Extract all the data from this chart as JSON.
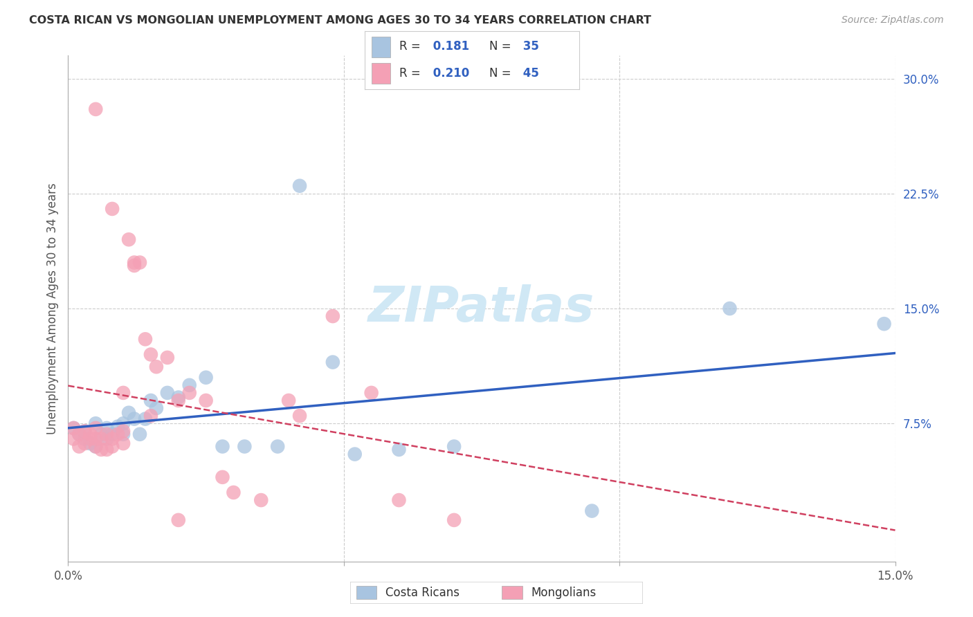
{
  "title": "COSTA RICAN VS MONGOLIAN UNEMPLOYMENT AMONG AGES 30 TO 34 YEARS CORRELATION CHART",
  "source": "Source: ZipAtlas.com",
  "ylabel": "Unemployment Among Ages 30 to 34 years",
  "xlim": [
    0.0,
    0.15
  ],
  "ylim": [
    -0.015,
    0.315
  ],
  "yticks_right": [
    0.075,
    0.15,
    0.225,
    0.3
  ],
  "yticklabels_right": [
    "7.5%",
    "15.0%",
    "22.5%",
    "30.0%"
  ],
  "xtick_positions": [
    0.0,
    0.05,
    0.1,
    0.15
  ],
  "xticklabels": [
    "0.0%",
    "",
    "",
    "15.0%"
  ],
  "costa_rica_color": "#a8c4e0",
  "mongolia_color": "#f4a0b5",
  "trend_cr_color": "#3060c0",
  "trend_mn_color": "#d04060",
  "background_color": "#ffffff",
  "grid_color": "#cccccc",
  "watermark_color": "#d0e8f5",
  "costa_rica_x": [
    0.001,
    0.002,
    0.003,
    0.003,
    0.004,
    0.005,
    0.005,
    0.006,
    0.007,
    0.007,
    0.008,
    0.009,
    0.01,
    0.01,
    0.011,
    0.012,
    0.013,
    0.014,
    0.015,
    0.016,
    0.018,
    0.02,
    0.022,
    0.025,
    0.028,
    0.032,
    0.038,
    0.042,
    0.048,
    0.052,
    0.06,
    0.07,
    0.095,
    0.12,
    0.148
  ],
  "costa_rica_y": [
    0.072,
    0.068,
    0.065,
    0.07,
    0.062,
    0.06,
    0.075,
    0.068,
    0.065,
    0.072,
    0.068,
    0.073,
    0.075,
    0.068,
    0.082,
    0.078,
    0.068,
    0.078,
    0.09,
    0.085,
    0.095,
    0.092,
    0.1,
    0.105,
    0.06,
    0.06,
    0.06,
    0.23,
    0.115,
    0.055,
    0.058,
    0.06,
    0.018,
    0.15,
    0.14
  ],
  "mongolia_x": [
    0.001,
    0.001,
    0.002,
    0.002,
    0.003,
    0.003,
    0.004,
    0.004,
    0.005,
    0.005,
    0.005,
    0.006,
    0.006,
    0.007,
    0.007,
    0.008,
    0.008,
    0.009,
    0.01,
    0.01,
    0.011,
    0.012,
    0.012,
    0.013,
    0.014,
    0.015,
    0.016,
    0.018,
    0.02,
    0.022,
    0.025,
    0.028,
    0.03,
    0.035,
    0.04,
    0.042,
    0.048,
    0.055,
    0.06,
    0.07,
    0.005,
    0.008,
    0.01,
    0.015,
    0.02
  ],
  "mongolia_y": [
    0.065,
    0.072,
    0.06,
    0.068,
    0.062,
    0.07,
    0.065,
    0.068,
    0.06,
    0.065,
    0.072,
    0.058,
    0.065,
    0.058,
    0.068,
    0.06,
    0.065,
    0.068,
    0.062,
    0.07,
    0.195,
    0.18,
    0.178,
    0.18,
    0.13,
    0.12,
    0.112,
    0.118,
    0.09,
    0.095,
    0.09,
    0.04,
    0.03,
    0.025,
    0.09,
    0.08,
    0.145,
    0.095,
    0.025,
    0.012,
    0.28,
    0.215,
    0.095,
    0.08,
    0.012
  ]
}
